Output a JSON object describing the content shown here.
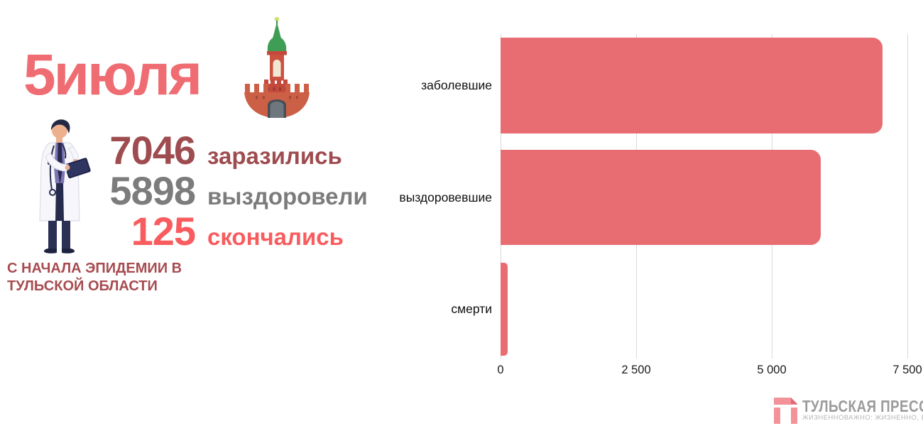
{
  "header": {
    "date_title": "5июля"
  },
  "stats": {
    "rows": [
      {
        "value": "7046",
        "label": "заразились",
        "color": "#9e4c50"
      },
      {
        "value": "5898",
        "label": "выздоровели",
        "color": "#7c7c7c"
      },
      {
        "value": "125",
        "label": "скончались",
        "color": "#f85c5f"
      }
    ],
    "caption_line1": "С НАЧАЛА ЭПИДЕМИИ В",
    "caption_line2": "ТУЛЬСКОЙ ОБЛАСТИ"
  },
  "chart_data": {
    "type": "bar",
    "orientation": "horizontal",
    "title": "",
    "categories": [
      "заболевшие",
      "выздоровевшие",
      "смерти"
    ],
    "values": [
      7046,
      5898,
      125
    ],
    "x_ticks": [
      "0",
      "2 500",
      "5 000",
      "7 500"
    ],
    "x_tick_values": [
      0,
      2500,
      5000,
      7500
    ],
    "xlim": [
      0,
      7500
    ],
    "bar_color": "#e76d72",
    "grid": true,
    "gridline_color": "#d9d9d9",
    "legend": "none"
  },
  "footer": {
    "brand_name": "ТУЛЬСКАЯ ПРЕССА",
    "tagline": "ЖИЗНЕННОВАЖНО: ЖИЗНЕННО, ВАЖНО"
  }
}
